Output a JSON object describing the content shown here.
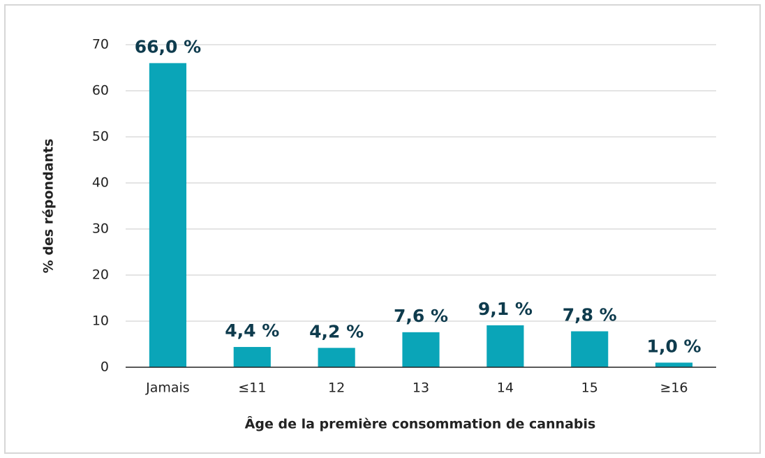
{
  "chart_data": {
    "type": "bar",
    "categories": [
      "Jamais",
      "≤11",
      "12",
      "13",
      "14",
      "15",
      "≥16"
    ],
    "values": [
      66.0,
      4.4,
      4.2,
      7.6,
      9.1,
      7.8,
      1.0
    ],
    "value_labels": [
      "66,0 %",
      "4,4 %",
      "4,2 %",
      "7,6 %",
      "9,1 %",
      "7,8 %",
      "1,0 %"
    ],
    "color": "#0aa5b8",
    "ylabel": "% des répondants",
    "xlabel": "Âge de la première consommation de cannabis",
    "ylim": [
      0,
      70
    ],
    "yticks": [
      0,
      10,
      20,
      30,
      40,
      50,
      60,
      70
    ],
    "grid": true
  }
}
